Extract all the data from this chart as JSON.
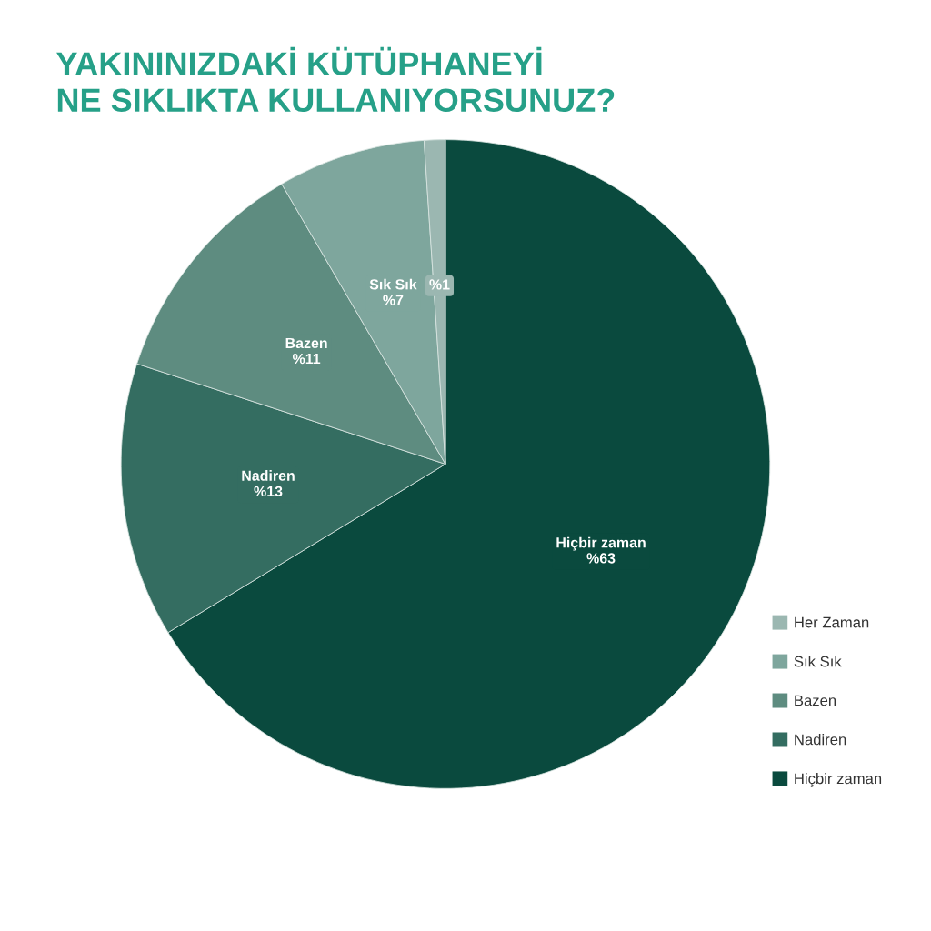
{
  "chart_data": {
    "type": "pie",
    "title": "YAKININIZDAKİ KÜTÜPHANEYİ\nNE SIKLIKTA KULLANIYORSUNUZ?",
    "categories": [
      "Hiçbir zaman",
      "Nadiren",
      "Bazen",
      "Sık Sık",
      "Her Zaman"
    ],
    "values": [
      63,
      13,
      11,
      7,
      1
    ],
    "colors": [
      "#0a4a3e",
      "#346d61",
      "#5e8c80",
      "#7ea69d",
      "#9bb7b1"
    ],
    "value_labels": [
      "Hiçbir zaman\n%63",
      "Nadiren\n%13",
      "Bazen\n%11",
      "Sık Sık\n%7",
      "%1"
    ],
    "legend": "bottom right"
  }
}
